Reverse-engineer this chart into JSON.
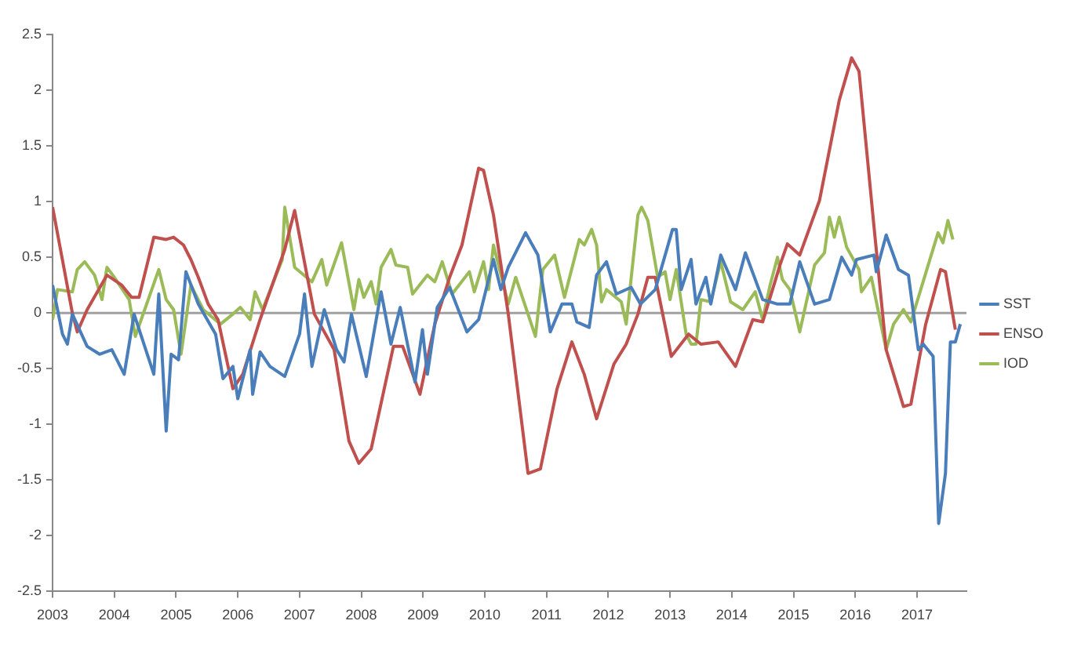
{
  "chart_data": {
    "type": "line",
    "xlim": [
      2003,
      2017.8
    ],
    "xticks": [
      2003,
      2004,
      2005,
      2006,
      2007,
      2008,
      2009,
      2010,
      2011,
      2012,
      2013,
      2014,
      2015,
      2016,
      2017
    ],
    "ylim": [
      -2.5,
      2.5
    ],
    "yticks": [
      -2.5,
      -2,
      -1.5,
      -1,
      -0.5,
      0,
      0.5,
      1,
      1.5,
      2,
      2.5
    ],
    "grid": false,
    "legend": "right",
    "marker": "none",
    "ref_lines": [
      {
        "axis": "y",
        "value": 0,
        "color": "#a0a0a0"
      }
    ],
    "series": [
      {
        "name": "SST",
        "color": "#4a7ebb",
        "x": [
          2003.0,
          2003.16,
          2003.24,
          2003.32,
          2003.56,
          2003.76,
          2003.96,
          2004.16,
          2004.32,
          2004.64,
          2004.72,
          2004.84,
          2004.92,
          2005.04,
          2005.16,
          2005.36,
          2005.64,
          2005.76,
          2005.92,
          2006.0,
          2006.2,
          2006.24,
          2006.36,
          2006.52,
          2006.76,
          2007.0,
          2007.08,
          2007.2,
          2007.4,
          2007.6,
          2007.72,
          2007.84,
          2008.08,
          2008.32,
          2008.48,
          2008.63,
          2008.87,
          2008.99,
          2009.07,
          2009.23,
          2009.43,
          2009.71,
          2009.9,
          2010.14,
          2010.26,
          2010.38,
          2010.66,
          2010.86,
          2011.06,
          2011.25,
          2011.41,
          2011.49,
          2011.69,
          2011.81,
          2011.97,
          2012.13,
          2012.37,
          2012.52,
          2012.76,
          2013.04,
          2013.1,
          2013.18,
          2013.34,
          2013.42,
          2013.58,
          2013.66,
          2013.82,
          2014.06,
          2014.22,
          2014.5,
          2014.74,
          2014.94,
          2015.1,
          2015.34,
          2015.58,
          2015.78,
          2015.94,
          2016.02,
          2016.3,
          2016.34,
          2016.5,
          2016.7,
          2016.86,
          2017.02,
          2017.1,
          2017.26,
          2017.35,
          2017.46,
          2017.54,
          2017.62,
          2017.7
        ],
        "values": [
          0.25,
          -0.19,
          -0.28,
          -0.01,
          -0.3,
          -0.37,
          -0.33,
          -0.55,
          -0.01,
          -0.55,
          0.17,
          -1.06,
          -0.37,
          -0.42,
          0.37,
          0.08,
          -0.19,
          -0.59,
          -0.48,
          -0.77,
          -0.33,
          -0.73,
          -0.35,
          -0.48,
          -0.57,
          -0.19,
          0.17,
          -0.48,
          0.03,
          -0.33,
          -0.44,
          -0.01,
          -0.57,
          0.19,
          -0.28,
          0.05,
          -0.62,
          -0.15,
          -0.55,
          0.05,
          0.23,
          -0.17,
          -0.06,
          0.48,
          0.21,
          0.41,
          0.72,
          0.52,
          -0.17,
          0.08,
          0.08,
          -0.08,
          -0.13,
          0.34,
          0.46,
          0.17,
          0.23,
          0.08,
          0.21,
          0.75,
          0.75,
          0.21,
          0.48,
          0.08,
          0.32,
          0.08,
          0.52,
          0.21,
          0.54,
          0.12,
          0.08,
          0.08,
          0.46,
          0.08,
          0.12,
          0.5,
          0.34,
          0.48,
          0.52,
          0.37,
          0.7,
          0.39,
          0.34,
          -0.33,
          -0.28,
          -0.39,
          -1.89,
          -1.44,
          -0.26,
          -0.26,
          -0.1
        ]
      },
      {
        "name": "ENSO",
        "color": "#c0504d",
        "x": [
          2003.0,
          2003.32,
          2003.4,
          2003.56,
          2003.88,
          2004.12,
          2004.28,
          2004.4,
          2004.64,
          2004.84,
          2004.96,
          2005.12,
          2005.24,
          2005.36,
          2005.52,
          2005.68,
          2005.92,
          2006.08,
          2006.36,
          2006.76,
          2006.92,
          2007.24,
          2007.56,
          2007.8,
          2007.96,
          2008.16,
          2008.52,
          2008.67,
          2008.95,
          2009.19,
          2009.43,
          2009.63,
          2009.9,
          2009.98,
          2010.14,
          2010.38,
          2010.7,
          2010.9,
          2011.17,
          2011.41,
          2011.61,
          2011.81,
          2012.09,
          2012.29,
          2012.48,
          2012.64,
          2012.76,
          2013.02,
          2013.3,
          2013.5,
          2013.78,
          2014.06,
          2014.34,
          2014.5,
          2014.78,
          2014.9,
          2015.1,
          2015.42,
          2015.74,
          2015.94,
          2016.06,
          2016.3,
          2016.5,
          2016.78,
          2016.9,
          2017.14,
          2017.38,
          2017.46,
          2017.62
        ],
        "values": [
          0.95,
          0.0,
          -0.17,
          0.03,
          0.34,
          0.25,
          0.14,
          0.14,
          0.68,
          0.66,
          0.68,
          0.61,
          0.48,
          0.32,
          0.08,
          -0.06,
          -0.68,
          -0.55,
          -0.06,
          0.57,
          0.92,
          -0.01,
          -0.33,
          -1.15,
          -1.35,
          -1.22,
          -0.3,
          -0.3,
          -0.73,
          -0.1,
          0.32,
          0.61,
          1.3,
          1.28,
          0.88,
          -0.01,
          -1.44,
          -1.4,
          -0.68,
          -0.26,
          -0.55,
          -0.95,
          -0.46,
          -0.28,
          -0.01,
          0.32,
          0.32,
          -0.39,
          -0.19,
          -0.28,
          -0.26,
          -0.48,
          -0.06,
          -0.08,
          0.43,
          0.62,
          0.52,
          1.01,
          1.91,
          2.29,
          2.17,
          0.79,
          -0.33,
          -0.84,
          -0.82,
          -0.1,
          0.39,
          0.37,
          -0.15
        ]
      },
      {
        "name": "IOD",
        "color": "#9bbb59",
        "x": [
          2003.0,
          2003.08,
          2003.32,
          2003.4,
          2003.52,
          2003.68,
          2003.8,
          2003.88,
          2004.0,
          2004.24,
          2004.34,
          2004.72,
          2004.84,
          2004.96,
          2005.08,
          2005.24,
          2005.44,
          2005.72,
          2005.92,
          2006.04,
          2006.2,
          2006.28,
          2006.4,
          2006.72,
          2006.76,
          2006.92,
          2007.2,
          2007.36,
          2007.44,
          2007.68,
          2007.88,
          2007.96,
          2008.04,
          2008.16,
          2008.24,
          2008.32,
          2008.48,
          2008.56,
          2008.75,
          2008.83,
          2009.07,
          2009.19,
          2009.31,
          2009.47,
          2009.75,
          2009.83,
          2009.98,
          2010.06,
          2010.14,
          2010.38,
          2010.5,
          2010.82,
          2010.94,
          2011.13,
          2011.29,
          2011.53,
          2011.61,
          2011.73,
          2011.81,
          2011.89,
          2011.97,
          2012.21,
          2012.29,
          2012.48,
          2012.54,
          2012.64,
          2012.8,
          2012.92,
          2013.0,
          2013.1,
          2013.26,
          2013.34,
          2013.42,
          2013.5,
          2013.66,
          2013.82,
          2013.98,
          2014.18,
          2014.38,
          2014.5,
          2014.62,
          2014.74,
          2014.82,
          2014.94,
          2015.1,
          2015.34,
          2015.5,
          2015.58,
          2015.66,
          2015.74,
          2015.86,
          2016.06,
          2016.1,
          2016.26,
          2016.5,
          2016.62,
          2016.78,
          2016.9,
          2017.34,
          2017.42,
          2017.5,
          2017.58
        ],
        "values": [
          -0.06,
          0.21,
          0.19,
          0.39,
          0.46,
          0.34,
          0.12,
          0.41,
          0.32,
          0.12,
          -0.21,
          0.39,
          0.12,
          0.03,
          -0.37,
          0.25,
          0.03,
          -0.1,
          -0.01,
          0.05,
          -0.06,
          0.19,
          0.03,
          0.48,
          0.95,
          0.41,
          0.28,
          0.48,
          0.25,
          0.63,
          0.03,
          0.3,
          0.14,
          0.28,
          0.08,
          0.41,
          0.57,
          0.43,
          0.41,
          0.17,
          0.34,
          0.28,
          0.46,
          0.17,
          0.37,
          0.19,
          0.46,
          0.21,
          0.61,
          0.08,
          0.32,
          -0.21,
          0.39,
          0.52,
          0.14,
          0.66,
          0.61,
          0.75,
          0.61,
          0.1,
          0.21,
          0.1,
          -0.1,
          0.88,
          0.95,
          0.83,
          0.32,
          0.37,
          0.12,
          0.39,
          -0.19,
          -0.28,
          -0.28,
          0.12,
          0.1,
          0.46,
          0.1,
          0.03,
          0.19,
          -0.06,
          0.25,
          0.5,
          0.3,
          0.21,
          -0.17,
          0.43,
          0.54,
          0.86,
          0.68,
          0.86,
          0.59,
          0.39,
          0.19,
          0.32,
          -0.33,
          -0.1,
          0.03,
          -0.08,
          0.72,
          0.63,
          0.83,
          0.66
        ]
      }
    ]
  }
}
